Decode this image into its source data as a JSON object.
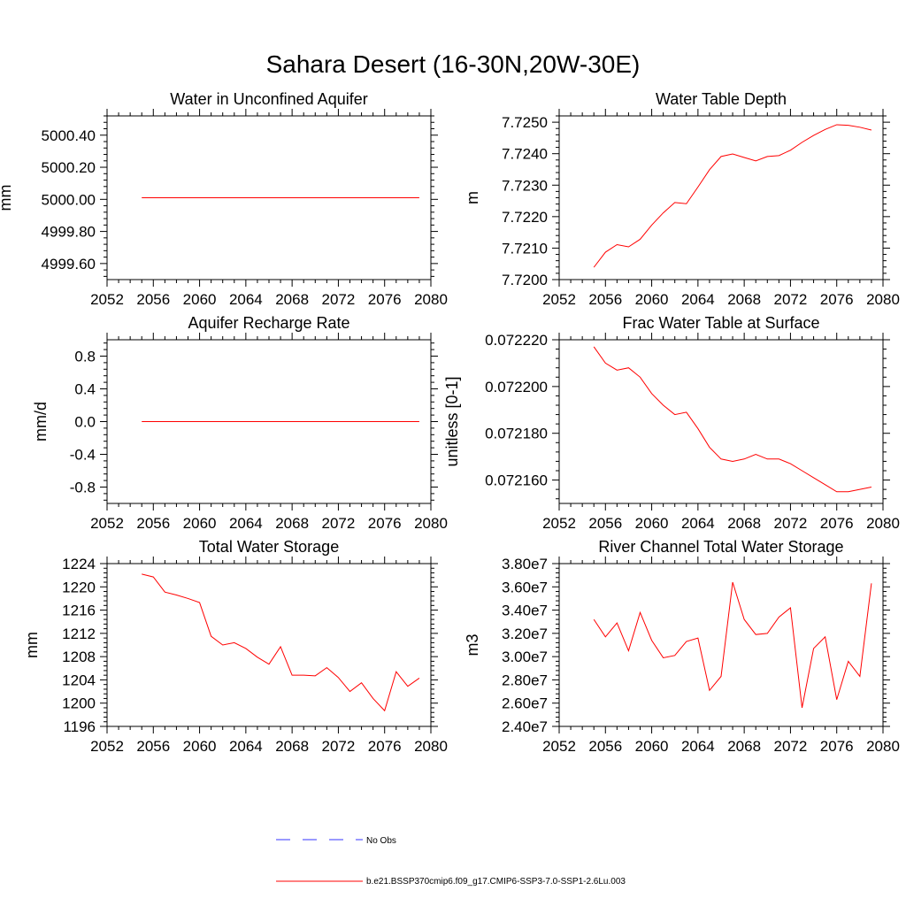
{
  "suptitle": "Sahara Desert (16-30N,20W-30E)",
  "colors": {
    "model": "#ff0000",
    "obs": "#3333ff",
    "axis": "#000000"
  },
  "legend": [
    {
      "label": "No Obs",
      "style": "dashed",
      "color": "#3333ff"
    },
    {
      "label": "b.e21.BSSP370cmip6.f09_g17.CMIP6-SSP3-7.0-SSP1-2.6Lu.003",
      "style": "solid",
      "color": "#ff0000"
    }
  ],
  "chart_data": [
    {
      "type": "line",
      "title": "Water in Unconfined Aquifer",
      "xlabel": "",
      "ylabel": "mm",
      "xlim": [
        2052,
        2080
      ],
      "ylim": [
        4999.5,
        5000.52
      ],
      "xticks": [
        2052,
        2056,
        2060,
        2064,
        2068,
        2072,
        2076,
        2080
      ],
      "yticks": [
        4999.6,
        4999.8,
        5000.0,
        5000.2,
        5000.4
      ],
      "yticklabels": [
        "4999.60",
        "4999.80",
        "5000.00",
        "5000.20",
        "5000.40"
      ],
      "series": [
        {
          "x": [
            2055,
            2079
          ],
          "y": [
            5000.01,
            5000.01
          ]
        }
      ]
    },
    {
      "type": "line",
      "title": "Water Table Depth",
      "xlabel": "",
      "ylabel": "m",
      "xlim": [
        2052,
        2080
      ],
      "ylim": [
        7.72,
        7.7252
      ],
      "xticks": [
        2052,
        2056,
        2060,
        2064,
        2068,
        2072,
        2076,
        2080
      ],
      "yticks": [
        7.72,
        7.721,
        7.722,
        7.723,
        7.724,
        7.725
      ],
      "yticklabels": [
        "7.7200",
        "7.7210",
        "7.7220",
        "7.7230",
        "7.7240",
        "7.7250"
      ],
      "series": [
        {
          "x": [
            2055,
            2056,
            2057,
            2058,
            2059,
            2060,
            2061,
            2062,
            2063,
            2064,
            2065,
            2066,
            2067,
            2068,
            2069,
            2070,
            2071,
            2072,
            2073,
            2074,
            2075,
            2076,
            2077,
            2078,
            2079
          ],
          "y": [
            7.72039,
            7.72087,
            7.72111,
            7.72104,
            7.72128,
            7.72173,
            7.72212,
            7.72245,
            7.72241,
            7.72294,
            7.72349,
            7.72391,
            7.72399,
            7.72388,
            7.72377,
            7.72391,
            7.72394,
            7.72411,
            7.72436,
            7.72458,
            7.72477,
            7.72492,
            7.7249,
            7.72484,
            7.72475
          ]
        }
      ]
    },
    {
      "type": "line",
      "title": "Aquifer Recharge Rate",
      "xlabel": "",
      "ylabel": "mm/d",
      "xlim": [
        2052,
        2080
      ],
      "ylim": [
        -1.0,
        1.0
      ],
      "xticks": [
        2052,
        2056,
        2060,
        2064,
        2068,
        2072,
        2076,
        2080
      ],
      "yticks": [
        -0.8,
        -0.4,
        0.0,
        0.4,
        0.8
      ],
      "yticklabels": [
        "-0.8",
        "-0.4",
        "0.0",
        "0.4",
        "0.8"
      ],
      "series": [
        {
          "x": [
            2055,
            2079
          ],
          "y": [
            0.0,
            0.0
          ]
        }
      ]
    },
    {
      "type": "line",
      "title": "Frac Water Table at Surface",
      "xlabel": "",
      "ylabel": "unitless [0-1]",
      "xlim": [
        2052,
        2080
      ],
      "ylim": [
        0.07215,
        0.07222
      ],
      "xticks": [
        2052,
        2056,
        2060,
        2064,
        2068,
        2072,
        2076,
        2080
      ],
      "yticks": [
        0.07216,
        0.07218,
        0.0722,
        0.07222
      ],
      "yticklabels": [
        "0.072160",
        "0.072180",
        "0.072200",
        "0.072220"
      ],
      "series": [
        {
          "x": [
            2055,
            2056,
            2057,
            2058,
            2059,
            2060,
            2061,
            2062,
            2063,
            2064,
            2065,
            2066,
            2067,
            2068,
            2069,
            2070,
            2071,
            2072,
            2073,
            2074,
            2075,
            2076,
            2077,
            2078,
            2079
          ],
          "y": [
            0.072217,
            0.07221,
            0.072207,
            0.072208,
            0.072204,
            0.072197,
            0.072192,
            0.072188,
            0.072189,
            0.072182,
            0.072174,
            0.072169,
            0.072168,
            0.072169,
            0.072171,
            0.072169,
            0.072169,
            0.072167,
            0.072164,
            0.072161,
            0.072158,
            0.072155,
            0.072155,
            0.072156,
            0.072157
          ]
        }
      ]
    },
    {
      "type": "line",
      "title": "Total Water Storage",
      "xlabel": "",
      "ylabel": "mm",
      "xlim": [
        2052,
        2080
      ],
      "ylim": [
        1196,
        1224
      ],
      "xticks": [
        2052,
        2056,
        2060,
        2064,
        2068,
        2072,
        2076,
        2080
      ],
      "yticks": [
        1196,
        1200,
        1204,
        1208,
        1212,
        1216,
        1220,
        1224
      ],
      "yticklabels": [
        "1196",
        "1200",
        "1204",
        "1208",
        "1212",
        "1216",
        "1220",
        "1224"
      ],
      "series": [
        {
          "x": [
            2055,
            2056,
            2057,
            2058,
            2059,
            2060,
            2061,
            2062,
            2063,
            2064,
            2065,
            2066,
            2067,
            2068,
            2069,
            2070,
            2071,
            2072,
            2073,
            2074,
            2075,
            2076,
            2077,
            2078,
            2079
          ],
          "y": [
            1222.2,
            1221.7,
            1219.1,
            1218.6,
            1218.0,
            1217.3,
            1211.5,
            1210.0,
            1210.4,
            1209.4,
            1207.9,
            1206.7,
            1209.7,
            1204.8,
            1204.8,
            1204.7,
            1206.1,
            1204.4,
            1202.0,
            1203.5,
            1200.8,
            1198.7,
            1205.4,
            1202.9,
            1204.3
          ]
        }
      ]
    },
    {
      "type": "line",
      "title": "River Channel Total Water Storage",
      "xlabel": "",
      "ylabel": "m3",
      "xlim": [
        2052,
        2080
      ],
      "ylim": [
        24000000,
        38000000
      ],
      "xticks": [
        2052,
        2056,
        2060,
        2064,
        2068,
        2072,
        2076,
        2080
      ],
      "yticks": [
        24000000,
        26000000,
        28000000,
        30000000,
        32000000,
        34000000,
        36000000,
        38000000
      ],
      "yticklabels": [
        "2.40e7",
        "2.60e7",
        "2.80e7",
        "3.00e7",
        "3.20e7",
        "3.40e7",
        "3.60e7",
        "3.80e7"
      ],
      "series": [
        {
          "x": [
            2055,
            2056,
            2057,
            2058,
            2059,
            2060,
            2061,
            2062,
            2063,
            2064,
            2065,
            2066,
            2067,
            2068,
            2069,
            2070,
            2071,
            2072,
            2073,
            2074,
            2075,
            2076,
            2077,
            2078,
            2079
          ],
          "y": [
            33200000,
            31700000,
            32900000,
            30500000,
            33800000,
            31400000,
            29900000,
            30100000,
            31300000,
            31600000,
            27100000,
            28300000,
            36400000,
            33200000,
            31900000,
            32000000,
            33400000,
            34200000,
            25600000,
            30700000,
            31700000,
            26300000,
            29600000,
            28300000,
            36300000
          ]
        }
      ]
    }
  ]
}
